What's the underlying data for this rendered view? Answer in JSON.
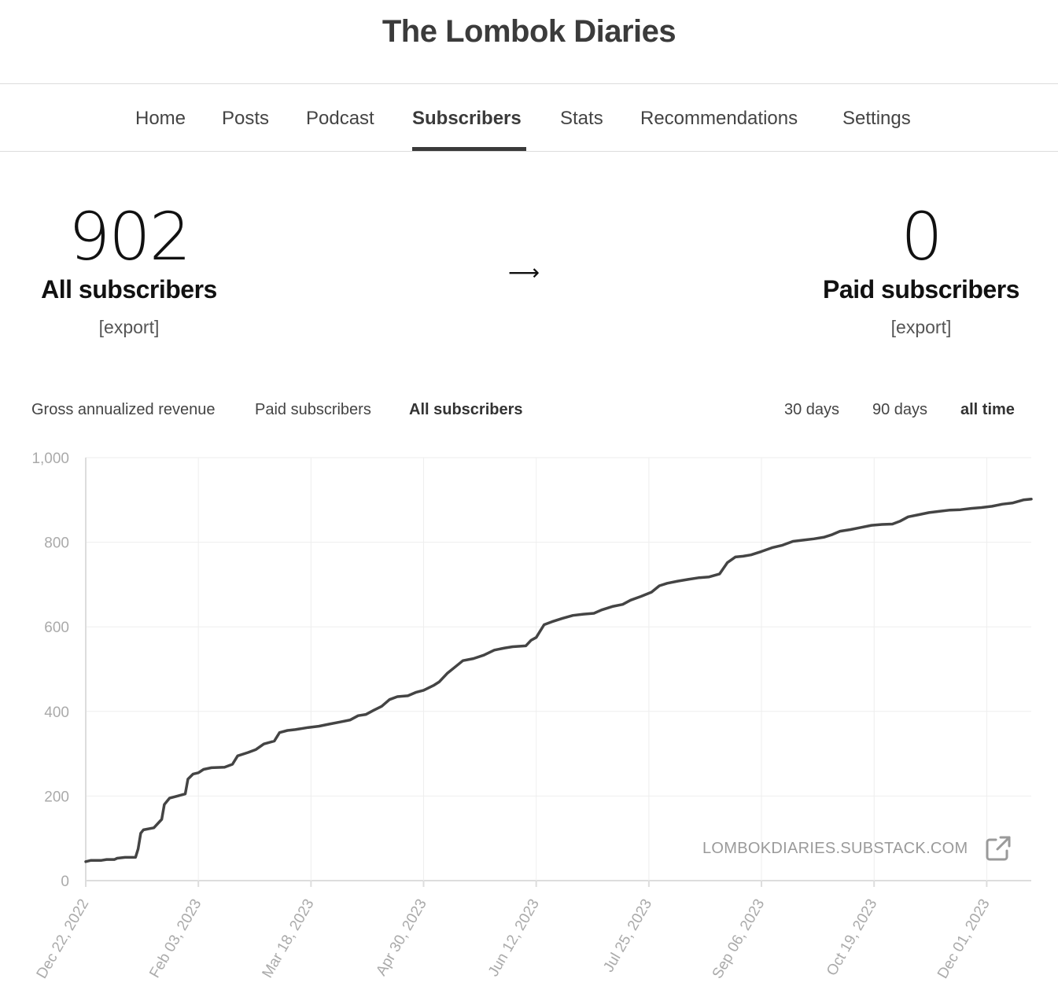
{
  "site": {
    "title": "The Lombok Diaries"
  },
  "nav": {
    "items": [
      {
        "label": "Home"
      },
      {
        "label": "Posts"
      },
      {
        "label": "Podcast"
      },
      {
        "label": "Subscribers"
      },
      {
        "label": "Stats"
      },
      {
        "label": "Recommendations"
      },
      {
        "label": "Settings"
      }
    ],
    "active": "Subscribers"
  },
  "summary": {
    "all": {
      "count": "902",
      "label": "All subscribers",
      "export": "[export]"
    },
    "arrow": "⟶",
    "paid": {
      "count": "0",
      "label": "Paid subscribers",
      "export": "[export]"
    }
  },
  "metric_tabs": [
    {
      "label": "Gross annualized revenue"
    },
    {
      "label": "Paid subscribers"
    },
    {
      "label": "All subscribers"
    }
  ],
  "active_metric": "All subscribers",
  "range_tabs": [
    {
      "label": "30 days"
    },
    {
      "label": "90 days"
    },
    {
      "label": "all time"
    }
  ],
  "active_range": "all time",
  "watermark": {
    "text": "LOMBOKDIARIES.SUBSTACK.COM",
    "icon": "external-link-icon"
  },
  "colors": {
    "line": "#444444",
    "grid": "#eeeeee",
    "axis": "#dddddd",
    "tick": "#aaaaaa"
  },
  "chart_data": {
    "type": "line",
    "title": "",
    "xlabel": "",
    "ylabel": "",
    "ylim": [
      0,
      1000
    ],
    "yticks": [
      0,
      200,
      400,
      600,
      800,
      1000
    ],
    "ytick_labels": [
      "0",
      "200",
      "400",
      "600",
      "800",
      "1,000"
    ],
    "xlim_days": [
      0,
      361
    ],
    "xticks": [
      {
        "day": 0,
        "label": "Dec 22, 2022"
      },
      {
        "day": 43,
        "label": "Feb 03, 2023"
      },
      {
        "day": 86,
        "label": "Mar 18, 2023"
      },
      {
        "day": 129,
        "label": "Apr 30, 2023"
      },
      {
        "day": 172,
        "label": "Jun 12, 2023"
      },
      {
        "day": 215,
        "label": "Jul 25, 2023"
      },
      {
        "day": 258,
        "label": "Sep 06, 2023"
      },
      {
        "day": 301,
        "label": "Oct 19, 2023"
      },
      {
        "day": 344,
        "label": "Dec 01, 2023"
      }
    ],
    "series": [
      {
        "name": "All subscribers",
        "points": [
          [
            0,
            45
          ],
          [
            2,
            48
          ],
          [
            6,
            48
          ],
          [
            8,
            50
          ],
          [
            11,
            50
          ],
          [
            12,
            53
          ],
          [
            15,
            55
          ],
          [
            19,
            55
          ],
          [
            20,
            75
          ],
          [
            21,
            112
          ],
          [
            22,
            120
          ],
          [
            26,
            125
          ],
          [
            29,
            145
          ],
          [
            30,
            180
          ],
          [
            32,
            195
          ],
          [
            35,
            200
          ],
          [
            38,
            205
          ],
          [
            39,
            240
          ],
          [
            41,
            252
          ],
          [
            43,
            255
          ],
          [
            45,
            263
          ],
          [
            48,
            267
          ],
          [
            53,
            268
          ],
          [
            56,
            275
          ],
          [
            58,
            295
          ],
          [
            62,
            303
          ],
          [
            65,
            310
          ],
          [
            68,
            323
          ],
          [
            72,
            330
          ],
          [
            74,
            350
          ],
          [
            77,
            355
          ],
          [
            80,
            357
          ],
          [
            85,
            362
          ],
          [
            89,
            365
          ],
          [
            93,
            370
          ],
          [
            97,
            375
          ],
          [
            101,
            380
          ],
          [
            104,
            390
          ],
          [
            107,
            393
          ],
          [
            110,
            403
          ],
          [
            113,
            412
          ],
          [
            116,
            428
          ],
          [
            119,
            435
          ],
          [
            123,
            437
          ],
          [
            126,
            445
          ],
          [
            129,
            450
          ],
          [
            133,
            462
          ],
          [
            135,
            470
          ],
          [
            138,
            490
          ],
          [
            141,
            505
          ],
          [
            144,
            520
          ],
          [
            148,
            525
          ],
          [
            152,
            533
          ],
          [
            156,
            545
          ],
          [
            160,
            550
          ],
          [
            163,
            553
          ],
          [
            168,
            555
          ],
          [
            170,
            568
          ],
          [
            172,
            575
          ],
          [
            175,
            605
          ],
          [
            178,
            612
          ],
          [
            182,
            620
          ],
          [
            186,
            627
          ],
          [
            190,
            630
          ],
          [
            194,
            632
          ],
          [
            197,
            640
          ],
          [
            201,
            648
          ],
          [
            205,
            653
          ],
          [
            208,
            663
          ],
          [
            212,
            672
          ],
          [
            216,
            682
          ],
          [
            219,
            697
          ],
          [
            222,
            703
          ],
          [
            226,
            708
          ],
          [
            230,
            712
          ],
          [
            234,
            716
          ],
          [
            238,
            718
          ],
          [
            242,
            725
          ],
          [
            245,
            752
          ],
          [
            248,
            765
          ],
          [
            251,
            767
          ],
          [
            254,
            770
          ],
          [
            258,
            778
          ],
          [
            262,
            787
          ],
          [
            266,
            793
          ],
          [
            270,
            802
          ],
          [
            274,
            805
          ],
          [
            278,
            808
          ],
          [
            282,
            812
          ],
          [
            285,
            818
          ],
          [
            288,
            826
          ],
          [
            292,
            830
          ],
          [
            296,
            835
          ],
          [
            300,
            840
          ],
          [
            304,
            842
          ],
          [
            308,
            843
          ],
          [
            311,
            850
          ],
          [
            314,
            860
          ],
          [
            318,
            865
          ],
          [
            322,
            870
          ],
          [
            326,
            873
          ],
          [
            330,
            876
          ],
          [
            334,
            877
          ],
          [
            338,
            880
          ],
          [
            342,
            882
          ],
          [
            346,
            885
          ],
          [
            350,
            890
          ],
          [
            354,
            893
          ],
          [
            358,
            900
          ],
          [
            361,
            902
          ]
        ]
      }
    ]
  }
}
